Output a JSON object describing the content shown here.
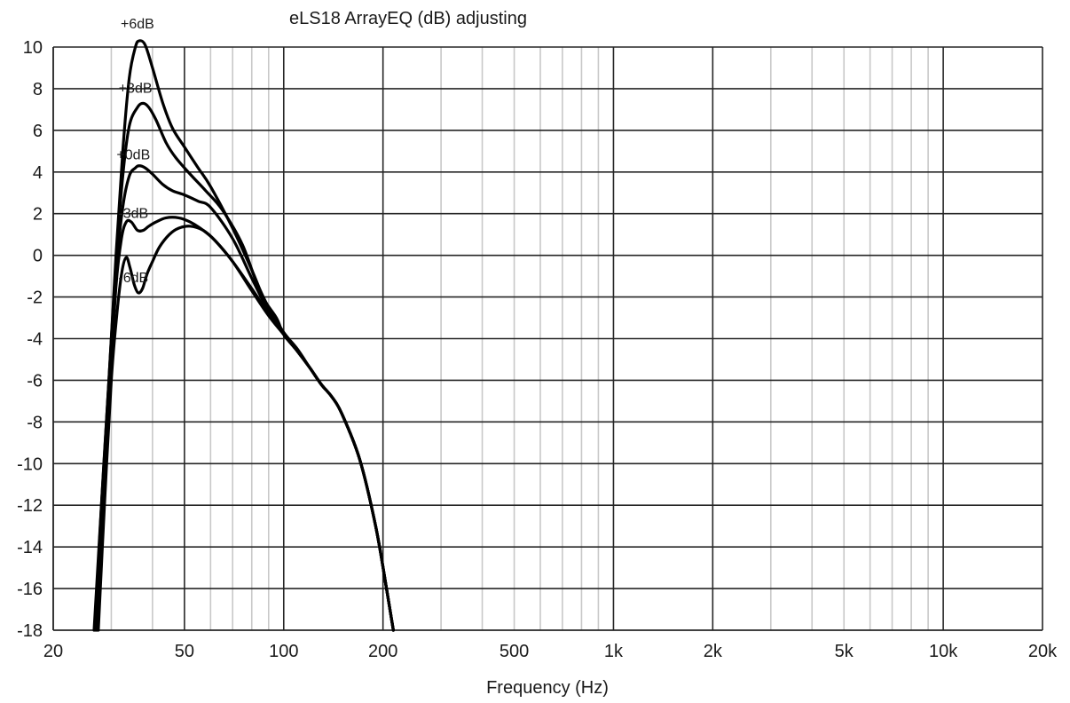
{
  "chart_data": {
    "type": "line",
    "title": "eLS18 ArrayEQ (dB) adjusting",
    "xlabel": "Frequency (Hz)",
    "ylabel": "",
    "xscale": "log",
    "xlim": [
      20,
      20000
    ],
    "ylim": [
      -18,
      10
    ],
    "grid": true,
    "legend": "none",
    "x_ticks": [
      {
        "value": 20,
        "label": "20"
      },
      {
        "value": 50,
        "label": "50"
      },
      {
        "value": 100,
        "label": "100"
      },
      {
        "value": 200,
        "label": "200"
      },
      {
        "value": 500,
        "label": "500"
      },
      {
        "value": 1000,
        "label": "1k"
      },
      {
        "value": 2000,
        "label": "2k"
      },
      {
        "value": 5000,
        "label": "5k"
      },
      {
        "value": 10000,
        "label": "10k"
      },
      {
        "value": 20000,
        "label": "20k"
      }
    ],
    "x_major_grid": [
      20,
      50,
      100,
      200,
      1000,
      2000,
      10000,
      20000
    ],
    "x_minor_grid": [
      30,
      40,
      60,
      70,
      80,
      90,
      300,
      400,
      500,
      600,
      700,
      800,
      900,
      3000,
      4000,
      5000,
      6000,
      7000,
      8000,
      9000
    ],
    "y_ticks": [
      10,
      8,
      6,
      4,
      2,
      0,
      -2,
      -4,
      -6,
      -8,
      -10,
      -12,
      -14,
      -16,
      -18
    ],
    "series": [
      {
        "label": "+6dB",
        "label_at": [
          36,
          10.9
        ],
        "points": [
          [
            26.6,
            -18
          ],
          [
            28,
            -12
          ],
          [
            29.5,
            -6
          ],
          [
            31,
            0
          ],
          [
            32.5,
            5
          ],
          [
            34,
            8.5
          ],
          [
            35.5,
            10
          ],
          [
            36.5,
            10.3
          ],
          [
            38,
            10.1
          ],
          [
            40,
            9
          ],
          [
            43,
            7.3
          ],
          [
            46,
            6.1
          ],
          [
            50,
            5.2
          ],
          [
            55,
            4.2
          ],
          [
            60,
            3.3
          ],
          [
            70,
            1.3
          ],
          [
            80,
            -0.7
          ],
          [
            85,
            -1.7
          ],
          [
            90,
            -2.5
          ],
          [
            100,
            -3.7
          ],
          [
            110,
            -4.5
          ],
          [
            120,
            -5.4
          ],
          [
            130,
            -6.2
          ],
          [
            140,
            -6.8
          ],
          [
            150,
            -7.6
          ],
          [
            170,
            -9.8
          ],
          [
            190,
            -13
          ],
          [
            205,
            -16
          ],
          [
            215,
            -18
          ]
        ]
      },
      {
        "label": "+3dB",
        "label_at": [
          35.5,
          7.8
        ],
        "points": [
          [
            26.8,
            -18
          ],
          [
            28,
            -12
          ],
          [
            29.5,
            -6
          ],
          [
            31,
            -0.3
          ],
          [
            32.5,
            3.8
          ],
          [
            34,
            6.2
          ],
          [
            36,
            7.1
          ],
          [
            37.5,
            7.3
          ],
          [
            39,
            7.1
          ],
          [
            41,
            6.5
          ],
          [
            44,
            5.4
          ],
          [
            47,
            4.7
          ],
          [
            52,
            3.9
          ],
          [
            58,
            3.1
          ],
          [
            65,
            2.2
          ],
          [
            75,
            0.5
          ],
          [
            85,
            -1.8
          ],
          [
            95,
            -3
          ],
          [
            100,
            -3.8
          ],
          [
            110,
            -4.6
          ],
          [
            120,
            -5.4
          ],
          [
            130,
            -6.2
          ],
          [
            140,
            -6.8
          ],
          [
            150,
            -7.6
          ],
          [
            170,
            -9.8
          ],
          [
            190,
            -13
          ],
          [
            205,
            -16
          ],
          [
            215,
            -18
          ]
        ]
      },
      {
        "label": "+0dB",
        "label_at": [
          35,
          4.6
        ],
        "points": [
          [
            27,
            -18
          ],
          [
            28.2,
            -12
          ],
          [
            29.6,
            -6
          ],
          [
            31,
            -0.8
          ],
          [
            32.5,
            2.3
          ],
          [
            34,
            3.8
          ],
          [
            35.5,
            4.2
          ],
          [
            36.5,
            4.3
          ],
          [
            38,
            4.2
          ],
          [
            40,
            3.9
          ],
          [
            43,
            3.4
          ],
          [
            46,
            3.1
          ],
          [
            50,
            2.9
          ],
          [
            55,
            2.6
          ],
          [
            60,
            2.3
          ],
          [
            70,
            0.8
          ],
          [
            80,
            -1.1
          ],
          [
            90,
            -2.7
          ],
          [
            100,
            -3.8
          ],
          [
            110,
            -4.6
          ],
          [
            120,
            -5.4
          ],
          [
            130,
            -6.2
          ],
          [
            140,
            -6.8
          ],
          [
            150,
            -7.6
          ],
          [
            170,
            -9.8
          ],
          [
            190,
            -13
          ],
          [
            205,
            -16
          ],
          [
            215,
            -18
          ]
        ]
      },
      {
        "label": "-3dB",
        "label_at": [
          35,
          1.8
        ],
        "points": [
          [
            27.2,
            -18
          ],
          [
            28.4,
            -12
          ],
          [
            29.8,
            -6
          ],
          [
            31,
            -1.5
          ],
          [
            32.2,
            0.8
          ],
          [
            33.3,
            1.6
          ],
          [
            34.5,
            1.6
          ],
          [
            36,
            1.2
          ],
          [
            37.5,
            1.2
          ],
          [
            39,
            1.4
          ],
          [
            41,
            1.6
          ],
          [
            44,
            1.8
          ],
          [
            48,
            1.8
          ],
          [
            52,
            1.6
          ],
          [
            57,
            1.2
          ],
          [
            62,
            0.7
          ],
          [
            70,
            -0.3
          ],
          [
            80,
            -1.6
          ],
          [
            90,
            -2.8
          ],
          [
            100,
            -3.8
          ],
          [
            110,
            -4.6
          ],
          [
            120,
            -5.4
          ],
          [
            130,
            -6.2
          ],
          [
            140,
            -6.8
          ],
          [
            150,
            -7.6
          ],
          [
            170,
            -9.8
          ],
          [
            190,
            -13
          ],
          [
            205,
            -16
          ],
          [
            215,
            -18
          ]
        ]
      },
      {
        "label": "-6dB",
        "label_at": [
          35,
          -1.3
        ],
        "points": [
          [
            27.4,
            -18
          ],
          [
            28.6,
            -12
          ],
          [
            30,
            -6
          ],
          [
            31.2,
            -2.8
          ],
          [
            32.3,
            -0.8
          ],
          [
            33.3,
            -0.1
          ],
          [
            34.2,
            -0.6
          ],
          [
            35.2,
            -1.4
          ],
          [
            36.2,
            -1.8
          ],
          [
            37.3,
            -1.6
          ],
          [
            38.5,
            -0.9
          ],
          [
            40,
            -0.3
          ],
          [
            42,
            0.4
          ],
          [
            45,
            1
          ],
          [
            48,
            1.3
          ],
          [
            52,
            1.4
          ],
          [
            57,
            1.2
          ],
          [
            62,
            0.7
          ],
          [
            70,
            -0.3
          ],
          [
            80,
            -1.7
          ],
          [
            90,
            -2.9
          ],
          [
            100,
            -3.8
          ],
          [
            110,
            -4.6
          ],
          [
            120,
            -5.4
          ],
          [
            130,
            -6.2
          ],
          [
            140,
            -6.8
          ],
          [
            150,
            -7.6
          ],
          [
            170,
            -9.8
          ],
          [
            190,
            -13
          ],
          [
            205,
            -16
          ],
          [
            215,
            -18
          ]
        ]
      }
    ]
  }
}
